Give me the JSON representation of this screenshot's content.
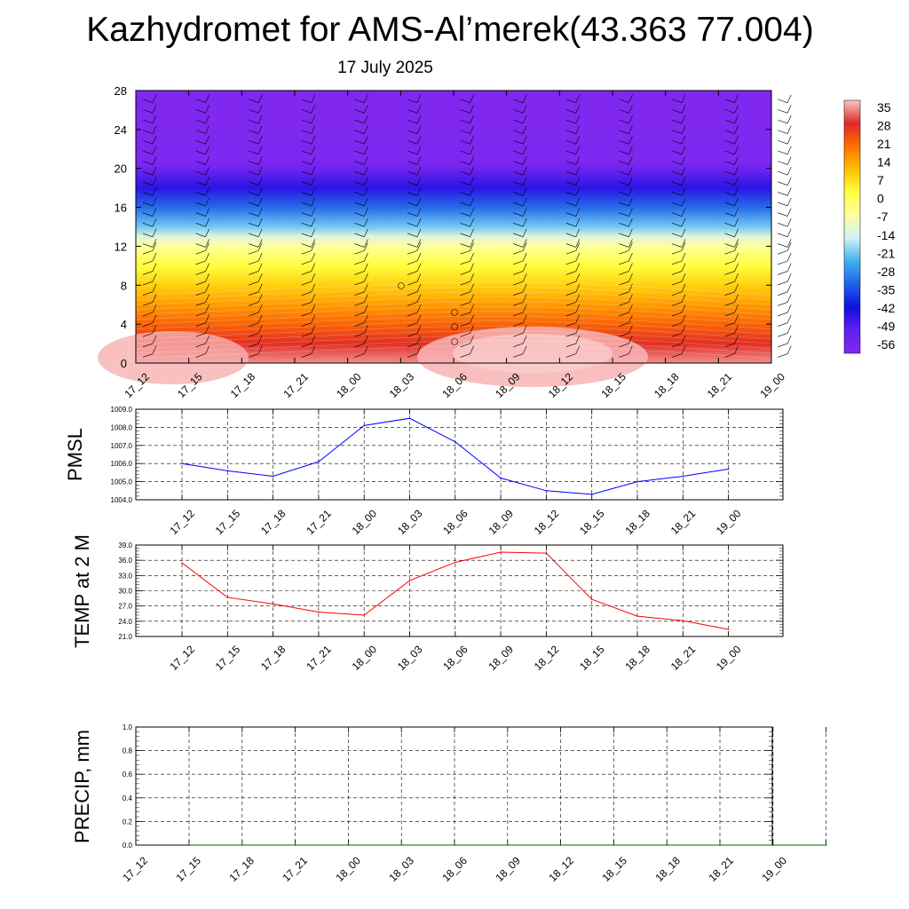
{
  "title": "Kazhydromet for AMS-Al’merek(43.363 77.004)",
  "subtitle": "17 July 2025",
  "colors": {
    "pmsl_line": "#0000ff",
    "temp_line": "#ff0000",
    "precip_line": "#006400",
    "grid": "#000000"
  },
  "chart_data": [
    {
      "type": "heatmap",
      "title": "",
      "xlabel": "",
      "ylabel": "",
      "x_tick_labels": [
        "17_12",
        "17_15",
        "17_18",
        "17_21",
        "18_00",
        "18_03",
        "18_06",
        "18_09",
        "18_12",
        "18_15",
        "18_18",
        "18_21",
        "19_00"
      ],
      "y_tick_labels": [
        "0",
        "4",
        "8",
        "12",
        "16",
        "20",
        "24",
        "28"
      ],
      "ylim": [
        0,
        28
      ],
      "overlay": "wind-barbs",
      "colorbar": {
        "labels": [
          "35",
          "28",
          "21",
          "14",
          "7",
          "0",
          "-7",
          "-14",
          "-21",
          "-28",
          "-35",
          "-42",
          "-49",
          "-56"
        ],
        "range": [
          -56,
          35
        ],
        "colors": [
          "#f8c8c8",
          "#e02828",
          "#ff7000",
          "#ffc000",
          "#ffff40",
          "#ffffa0",
          "#d0f0f8",
          "#40b0f0",
          "#2060e8",
          "#1010e0",
          "#6020f0",
          "#8028f0"
        ]
      },
      "temperature_by_level": {
        "levels": [
          0,
          2,
          4,
          6,
          8,
          10,
          12,
          13,
          14,
          16,
          18,
          20,
          21,
          22,
          24,
          28
        ],
        "values": [
          32,
          26,
          20,
          14,
          8,
          2,
          -6,
          -12,
          -20,
          -30,
          -42,
          -52,
          -58,
          -55,
          -60,
          -62
        ]
      }
    },
    {
      "type": "line",
      "title": "",
      "xlabel": "",
      "ylabel": "PMSL",
      "x": [
        "17_12",
        "17_15",
        "17_18",
        "17_21",
        "18_00",
        "18_03",
        "18_06",
        "18_09",
        "18_12",
        "18_15",
        "18_18",
        "18_21",
        "19_00"
      ],
      "series": [
        {
          "values": [
            1006.0,
            1005.6,
            1005.3,
            1006.1,
            1008.1,
            1008.5,
            1007.2,
            1005.2,
            1004.5,
            1004.3,
            1005.0,
            1005.3,
            1005.7
          ]
        }
      ],
      "ylim": [
        1004.0,
        1009.0
      ],
      "y_tick_labels": [
        "1004.0",
        "1005.0",
        "1006.0",
        "1007.0",
        "1008.0",
        "1009.0"
      ],
      "grid": true
    },
    {
      "type": "line",
      "title": "",
      "xlabel": "",
      "ylabel": "TEMP at 2 M",
      "x": [
        "17_12",
        "17_15",
        "17_18",
        "17_21",
        "18_00",
        "18_03",
        "18_06",
        "18_09",
        "18_12",
        "18_15",
        "18_18",
        "18_21",
        "19_00"
      ],
      "series": [
        {
          "values": [
            35.5,
            28.7,
            27.4,
            25.8,
            25.2,
            32.0,
            35.6,
            37.6,
            37.4,
            28.3,
            25.0,
            24.1,
            22.4
          ]
        }
      ],
      "ylim": [
        21.0,
        39.0
      ],
      "y_tick_labels": [
        "21.0",
        "24.0",
        "27.0",
        "30.0",
        "33.0",
        "36.0",
        "39.0"
      ],
      "grid": true
    },
    {
      "type": "line",
      "title": "",
      "xlabel": "",
      "ylabel": "PRECIP, mm",
      "x": [
        "17_12",
        "17_15",
        "17_18",
        "17_21",
        "18_00",
        "18_03",
        "18_06",
        "18_09",
        "18_12",
        "18_15",
        "18_18",
        "18_21",
        "19_00"
      ],
      "series": [
        {
          "values": [
            0,
            0,
            0,
            0,
            0,
            0,
            0,
            0,
            0,
            0,
            0,
            0,
            0
          ]
        }
      ],
      "ylim": [
        0.0,
        1.0
      ],
      "y_tick_labels": [
        "0.0",
        "0.2",
        "0.4",
        "0.6",
        "0.8",
        "1.0"
      ],
      "grid": true
    }
  ]
}
